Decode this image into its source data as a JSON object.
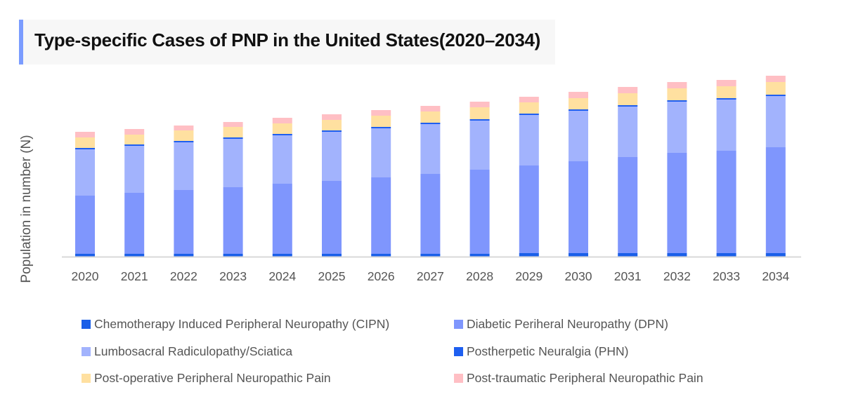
{
  "chart_data": {
    "type": "bar",
    "stacked": true,
    "title": "Type-specific Cases of PNP in the United States(2020–2034)",
    "xlabel": "",
    "ylabel": "Population in number (N)",
    "y_tick_labels_shown": false,
    "grid": false,
    "legend_placement": "bottom",
    "ylim": [
      0,
      270
    ],
    "categories": [
      "2020",
      "2021",
      "2022",
      "2023",
      "2024",
      "2025",
      "2026",
      "2027",
      "2028",
      "2029",
      "2030",
      "2031",
      "2032",
      "2033",
      "2034"
    ],
    "series": [
      {
        "name": "Chemotherapy Induced Peripheral Neuropathy (CIPN)",
        "color": "#1a5fe8",
        "values": [
          4,
          4,
          4,
          4,
          4,
          4,
          4,
          4,
          4,
          5,
          5,
          5,
          5,
          5,
          5
        ]
      },
      {
        "name": "Diabetic Periheral Neuropathy (DPN)",
        "color": "#7f96fd",
        "values": [
          83,
          87,
          91,
          95,
          100,
          104,
          109,
          114,
          120,
          125,
          131,
          137,
          143,
          146,
          151
        ]
      },
      {
        "name": "Lumbosacral Radiculopathy/Sciatica",
        "color": "#a2b3fd",
        "values": [
          66,
          67,
          68,
          69,
          69,
          70,
          70,
          71,
          70,
          72,
          72,
          72,
          73,
          73,
          73
        ]
      },
      {
        "name": "Postherpetic Neuralgia (PHN)",
        "color": "#1e5ff0",
        "values": [
          2,
          2,
          2,
          2,
          2,
          2,
          2,
          2,
          2,
          2,
          2,
          2,
          2,
          2,
          2
        ]
      },
      {
        "name": "Post-operative Peripheral Neuropathic Pain",
        "color": "#ffe0a0",
        "values": [
          15,
          14,
          15,
          15,
          15,
          15,
          16,
          16,
          17,
          16,
          16,
          17,
          17,
          17,
          18
        ]
      },
      {
        "name": "Post-traumatic Peripheral Neuropathic Pain",
        "color": "#ffbfc4",
        "values": [
          8,
          8,
          7,
          7,
          8,
          8,
          8,
          8,
          8,
          8,
          9,
          9,
          9,
          9,
          9
        ]
      }
    ]
  },
  "colors": {
    "title_accent": "#7b9cff",
    "axis": "#d9d9d9"
  }
}
